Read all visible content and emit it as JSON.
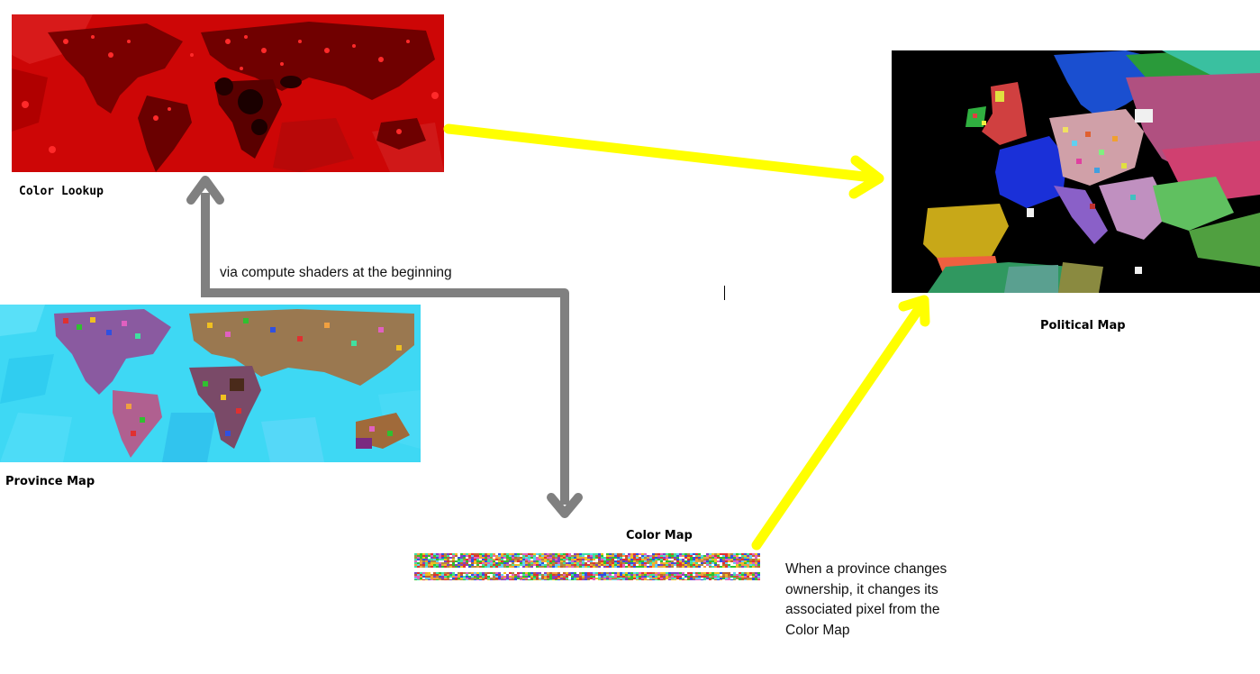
{
  "labels": {
    "color_lookup": "Color Lookup",
    "province_map": "Province Map",
    "color_map": "Color Map",
    "political_map": "Political Map"
  },
  "annotations": {
    "compute_shaders": "via compute shaders at the beginning",
    "ownership_note": [
      "When a province changes",
      "ownership, it changes its",
      "associated pixel from the",
      "Color Map"
    ]
  },
  "colors": {
    "gray_arrow": "#808080",
    "yellow_arrow": "#ffff00",
    "color_lookup_base": "#cc0000",
    "province_ocean": "#3ed8f4",
    "political_background": "#000000"
  },
  "icons": {
    "lookup_to_political": "arrow-right-icon",
    "province_to_lookup": "arrow-up-icon",
    "province_to_colormap": "arrow-down-icon",
    "colormap_to_political": "arrow-up-right-icon"
  }
}
